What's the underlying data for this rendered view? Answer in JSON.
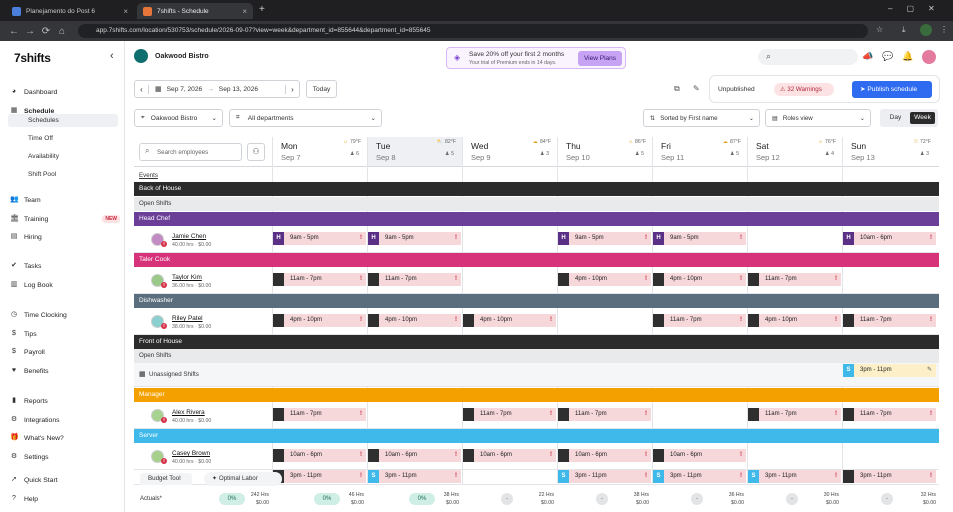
{
  "browser": {
    "tabs": [
      {
        "title": "Planejamento do Post 6",
        "active": false,
        "favicon_color": "#4a7fdb"
      },
      {
        "title": "7shifts - Schedule",
        "active": true,
        "favicon_color": "#e8763a"
      }
    ],
    "url": "app.7shifts.com/location/530753/schedule/2026-09-07?view=week&department_id=855644&department_id=855645"
  },
  "sidebar": {
    "logo": "7shifts",
    "collapse": "‹",
    "items": [
      {
        "label": "Dashboard",
        "icon": "dashboard-icon",
        "glyph": "◕"
      },
      {
        "label": "Schedule",
        "icon": "calendar-icon",
        "glyph": "▦"
      },
      {
        "label": "Team",
        "icon": "team-icon",
        "glyph": "👥"
      },
      {
        "label": "Training",
        "icon": "training-icon",
        "glyph": "🏛",
        "badge": "NEW"
      },
      {
        "label": "Hiring",
        "icon": "hiring-icon",
        "glyph": "▤"
      },
      {
        "label": "Tasks",
        "icon": "tasks-icon",
        "glyph": "✔"
      },
      {
        "label": "Log Book",
        "icon": "logbook-icon",
        "glyph": "▥"
      },
      {
        "label": "Time Clocking",
        "icon": "clock-icon",
        "glyph": "◷"
      },
      {
        "label": "Tips",
        "icon": "tips-icon",
        "glyph": "$"
      },
      {
        "label": "Payroll",
        "icon": "payroll-icon",
        "glyph": "$"
      },
      {
        "label": "Benefits",
        "icon": "benefits-icon",
        "glyph": "♥"
      },
      {
        "label": "Reports",
        "icon": "reports-icon",
        "glyph": "▮"
      },
      {
        "label": "Integrations",
        "icon": "integrations-icon",
        "glyph": "⚙"
      },
      {
        "label": "What's New?",
        "icon": "gift-icon",
        "glyph": "🎁"
      },
      {
        "label": "Settings",
        "icon": "settings-icon",
        "glyph": "⚙"
      },
      {
        "label": "Quick Start",
        "icon": "rocket-icon",
        "glyph": "➚"
      },
      {
        "label": "Help",
        "icon": "help-icon",
        "glyph": "?"
      }
    ],
    "subitems": [
      "Schedules",
      "Time Off",
      "Availability",
      "Shift Pool"
    ]
  },
  "header": {
    "location": "Oakwood Bistro",
    "promo_title": "Save 20% off your first 2 months",
    "promo_sub": "Your trial of Premium ends in 14 days.",
    "promo_button": "View Plans"
  },
  "toolbar": {
    "date_from": "Sep 7, 2026",
    "date_to": "Sep 13, 2026",
    "today": "Today",
    "status": "Unpublished",
    "warnings": "32 Warnings",
    "publish": "Publish schedule",
    "location_filter": "Oakwood Bistro",
    "department_filter": "All departments",
    "sort": "Sorted by First name",
    "view": "Roles view",
    "day": "Day",
    "week": "Week"
  },
  "schedule": {
    "search_placeholder": "Search employees",
    "days": [
      {
        "name": "Mon",
        "date": "Sep 7",
        "temp": "79°F",
        "weather": "☼",
        "count": "6"
      },
      {
        "name": "Tue",
        "date": "Sep 8",
        "temp": "82°F",
        "weather": "⛅",
        "count": "5"
      },
      {
        "name": "Wed",
        "date": "Sep 9",
        "temp": "84°F",
        "weather": "☁",
        "count": "3"
      },
      {
        "name": "Thu",
        "date": "Sep 10",
        "temp": "86°F",
        "weather": "☼",
        "count": "5"
      },
      {
        "name": "Fri",
        "date": "Sep 11",
        "temp": "87°F",
        "weather": "☁",
        "count": "5"
      },
      {
        "name": "Sat",
        "date": "Sep 12",
        "temp": "76°F",
        "weather": "☼",
        "count": "4"
      },
      {
        "name": "Sun",
        "date": "Sep 13",
        "temp": "72°F",
        "weather": "⛆",
        "count": "3"
      }
    ],
    "events": "Events",
    "back_of_house": "Back of House",
    "front_of_house": "Front of House",
    "open_shifts": "Open Shifts",
    "unassigned": "Unassigned Shifts",
    "unassigned_shift": {
      "day": 6,
      "tag": "S",
      "time": "3pm - 11pm"
    },
    "roles": [
      {
        "name": "Head Chef",
        "color": "#6b3f98",
        "tag": "H",
        "tagcolor": "#5a2f86",
        "employee": "Jamie Chen",
        "hours": "40.00 hrs · $0.00",
        "avatar": "#c28bc3",
        "shifts": [
          [
            "9am - 5pm"
          ],
          [
            "9am - 5pm"
          ],
          [],
          [
            "9am - 5pm"
          ],
          [
            "9am - 5pm"
          ],
          [],
          [
            "10am - 6pm"
          ]
        ]
      },
      {
        "name": "Taler Cook",
        "color": "#d6337b",
        "tag": "",
        "tagcolor": "#2f2f2f",
        "employee": "Taylor Kim",
        "hours": "36.00 hrs · $0.00",
        "avatar": "#9bc98a",
        "shifts": [
          [
            "11am - 7pm"
          ],
          [
            "11am - 7pm"
          ],
          [],
          [
            "4pm - 10pm"
          ],
          [
            "4pm - 10pm"
          ],
          [
            "11am - 7pm"
          ],
          []
        ]
      },
      {
        "name": "Dishwasher",
        "color": "#5b6e7d",
        "tag": "",
        "tagcolor": "#2f2f2f",
        "employee": "Riley Patel",
        "hours": "38.00 hrs · $0.00",
        "avatar": "#8ccfd0",
        "shifts": [
          [
            "4pm - 10pm"
          ],
          [
            "4pm - 10pm"
          ],
          [
            "4pm - 10pm"
          ],
          [],
          [
            "11am - 7pm"
          ],
          [
            "4pm - 10pm"
          ],
          [
            "11am - 7pm"
          ]
        ]
      },
      {
        "name": "Manager",
        "color": "#f4a100",
        "tag": "",
        "tagcolor": "#2f2f2f",
        "employee": "Alex Rivera",
        "hours": "40.00 hrs · $0.00",
        "avatar": "#a8d28f",
        "shifts": [
          [
            "11am - 7pm"
          ],
          [],
          [
            "11am - 7pm"
          ],
          [
            "11am - 7pm"
          ],
          [],
          [
            "11am - 7pm"
          ],
          [
            "11am - 7pm"
          ]
        ]
      },
      {
        "name": "Server",
        "color": "#3fb9ea",
        "tag": "",
        "tagcolor": "#2f2f2f",
        "employee": "Casey Brown",
        "hours": "40.00 hrs · $0.00",
        "avatar": "#a7d18b",
        "shifts": [
          [
            "10am - 6pm"
          ],
          [
            "10am - 6pm"
          ],
          [
            "10am - 6pm"
          ],
          [
            "10am - 6pm"
          ],
          [
            "10am - 6pm"
          ],
          [],
          []
        ]
      }
    ],
    "server_second_row": [
      [
        "3pm - 11pm",
        ""
      ],
      [
        "3pm - 11pm",
        "S"
      ],
      [],
      [
        "3pm - 11pm",
        "S"
      ],
      [
        "3pm - 11pm",
        "S"
      ],
      [
        "3pm - 11pm",
        "S"
      ],
      [
        "3pm - 11pm",
        ""
      ]
    ]
  },
  "footer": {
    "budget_tool": "Budget Tool",
    "optimal_labor": "Optimal Labor",
    "actuals_label": "Actuals*",
    "cols": [
      {
        "pill": "0%",
        "hrs": "242 Hrs",
        "cost": "$0.00"
      },
      {
        "pill": "0%",
        "hrs": "46 Hrs",
        "cost": "$0.00"
      },
      {
        "pill": "0%",
        "hrs": "38 Hrs",
        "cost": "$0.00"
      },
      {
        "pill": "-",
        "hrs": "22 Hrs",
        "cost": "$0.00"
      },
      {
        "pill": "-",
        "hrs": "38 Hrs",
        "cost": "$0.00"
      },
      {
        "pill": "-",
        "hrs": "36 Hrs",
        "cost": "$0.00"
      },
      {
        "pill": "-",
        "hrs": "30 Hrs",
        "cost": "$0.00"
      },
      {
        "pill": "-",
        "hrs": "32 Hrs",
        "cost": "$0.00"
      }
    ]
  },
  "colors": {
    "accent": "#2e6bf0",
    "band_dark": "#2b2b2b",
    "shift_bg": "#f6d7da",
    "warning_red": "#c6283c"
  }
}
